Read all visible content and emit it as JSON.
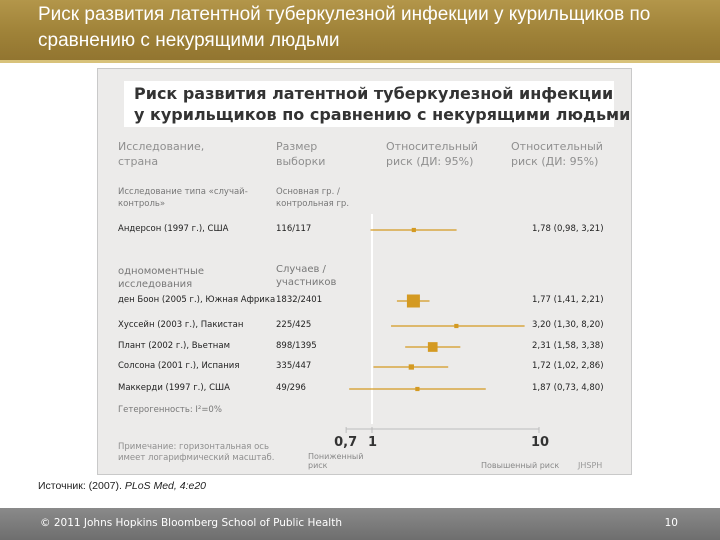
{
  "slide": {
    "title": "Риск развития латентной туберкулезной инфекции у курильщиков по сравнению с некурящими людьми",
    "source_label": "Источник: (2007). ",
    "source_journal": "PLoS Med, 4:e20",
    "footer": "© 2011 Johns Hopkins Bloomberg School of Public Health",
    "page_number": "10"
  },
  "chart_data": {
    "type": "forest",
    "title_line1": "Риск развития латентной туберкулезной инфекции",
    "title_line2": "у курильщиков по сравнению с некурящими людьми",
    "columns": {
      "study": "Исследование, страна",
      "sample": "Размер выборки",
      "rr_left": "Относительный риск (ДИ: 95%)",
      "rr_right": "Относительный риск (ДИ: 95%)"
    },
    "groups": [
      {
        "label": "Исследование типа «случай-контроль»",
        "sample_header": "Основная гр. / контрольная гр.",
        "studies": [
          {
            "study": "Андерсон (1997 г.), США",
            "sample": "116/117",
            "rr": 1.78,
            "ci_low": 0.98,
            "ci_high": 3.21,
            "ci_text": "1,78 (0,98, 3,21)",
            "weight": 2
          }
        ]
      },
      {
        "label": "одномоментные исследования",
        "sample_header": "Случаев / участников",
        "studies": [
          {
            "study": "ден Боон (2005 г.), Южная Африка",
            "sample": "1832/2401",
            "rr": 1.77,
            "ci_low": 1.41,
            "ci_high": 2.21,
            "ci_text": "1,77 (1,41, 2,21)",
            "weight": 10
          },
          {
            "study": "Хуссейн (2003 г.), Пакистан",
            "sample": "225/425",
            "rr": 3.2,
            "ci_low": 1.3,
            "ci_high": 8.2,
            "ci_text": "3,20 (1,30, 8,20)",
            "weight": 2
          },
          {
            "study": "Плант (2002 г.), Вьетнам",
            "sample": "898/1395",
            "rr": 2.31,
            "ci_low": 1.58,
            "ci_high": 3.38,
            "ci_text": "2,31 (1,58, 3,38)",
            "weight": 7
          },
          {
            "study": "Солсона (2001 г.), Испания",
            "sample": "335/447",
            "rr": 1.72,
            "ci_low": 1.02,
            "ci_high": 2.86,
            "ci_text": "1,72 (1,02, 2,86)",
            "weight": 3
          },
          {
            "study": "Маккерди (1997 г.), США",
            "sample": "49/296",
            "rr": 1.87,
            "ci_low": 0.73,
            "ci_high": 4.8,
            "ci_text": "1,87 (0,73, 4,80)",
            "weight": 2
          }
        ]
      }
    ],
    "heterogeneity": "Гетерогенность: I²=0%",
    "note": "Примечание: горизонтальная ось имеет логарифмический масштаб.",
    "x_scale": "log",
    "x_ticks": [
      {
        "value": 0.7,
        "label": "0,7"
      },
      {
        "value": 1,
        "label": "1"
      },
      {
        "value": 10,
        "label": "10"
      }
    ],
    "xlabel_low": "Пониженный риск",
    "xlabel_high": "Повышенный риск",
    "logo": "JHSPH",
    "marker_color": "#d49a22"
  }
}
